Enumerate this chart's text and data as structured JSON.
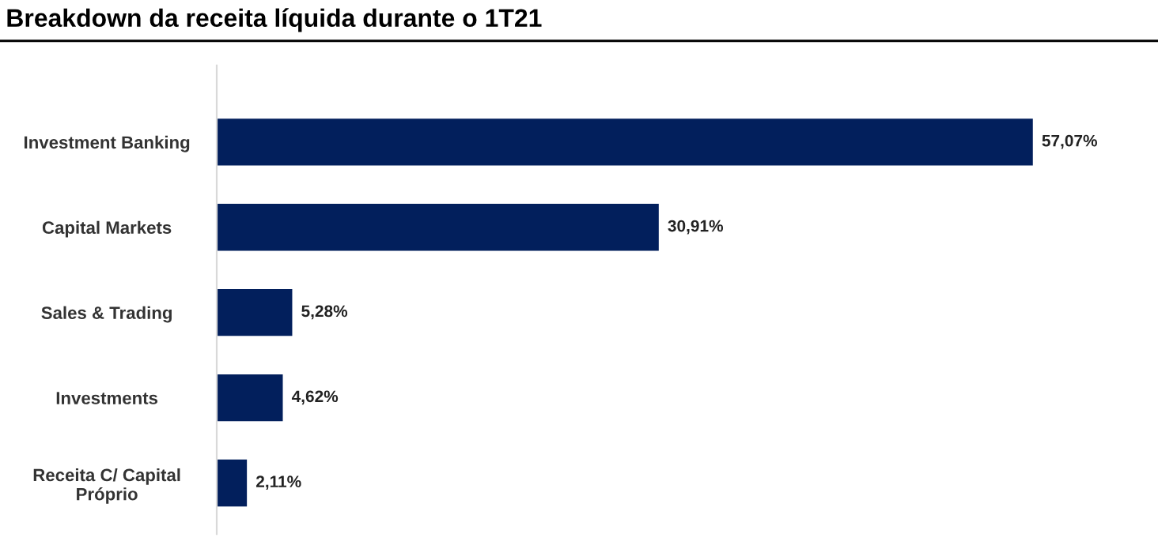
{
  "chart_data": {
    "type": "bar",
    "orientation": "horizontal",
    "title": "Breakdown da receita líquida durante o 1T21",
    "categories": [
      "Investment Banking",
      "Capital Markets",
      "Sales & Trading",
      "Investments",
      "Receita C/ Capital\nPróprio"
    ],
    "values": [
      57.07,
      30.91,
      5.28,
      4.62,
      2.11
    ],
    "value_labels": [
      "57,07%",
      "30,91%",
      "5,28%",
      "4,62%",
      "2,11%"
    ],
    "color": "#021f5c",
    "grid": false,
    "legend": false
  }
}
